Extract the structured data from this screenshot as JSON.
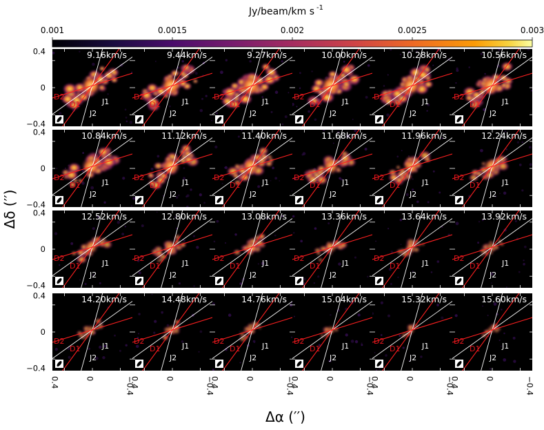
{
  "colorbar": {
    "unit_label": "Jy/beam/km s",
    "unit_exponent": "-1",
    "ticks": [
      "0.001",
      "0.0015",
      "0.002",
      "0.0025",
      "0.003"
    ],
    "range": [
      0.001,
      0.003
    ],
    "colormap": "inferno"
  },
  "axes": {
    "ylabel": "Δδ (′′)",
    "xlabel": "Δα (′′)",
    "ytick_labels": [
      "0.4",
      "0",
      "−0.4"
    ],
    "xtick_labels": [
      "0.4",
      "0",
      "−0.4"
    ],
    "range": [
      -0.4,
      0.4
    ]
  },
  "line_labels": {
    "white": [
      "J1",
      "J2"
    ],
    "red": [
      "D1",
      "D2"
    ]
  },
  "colors": {
    "background": "#000000",
    "jet_lines": "#ffffff",
    "disk_lines": "#ff2020",
    "label_red": "#e8141c"
  },
  "chart_data": {
    "type": "heatmap",
    "channels": [
      {
        "v": "9.16km/s",
        "i": 1.0
      },
      {
        "v": "9.44km/s",
        "i": 1.0
      },
      {
        "v": "9.27km/s",
        "i": 1.0
      },
      {
        "v": "10.00km/s",
        "i": 1.0
      },
      {
        "v": "10.28km/s",
        "i": 0.97
      },
      {
        "v": "10.56km/s",
        "i": 0.93
      },
      {
        "v": "10.84km/s",
        "i": 0.9
      },
      {
        "v": "11.12km/s",
        "i": 0.85
      },
      {
        "v": "11.40km/s",
        "i": 0.8
      },
      {
        "v": "11.68km/s",
        "i": 0.74
      },
      {
        "v": "11.96km/s",
        "i": 0.68
      },
      {
        "v": "12.24km/s",
        "i": 0.62
      },
      {
        "v": "12.52km/s",
        "i": 0.55
      },
      {
        "v": "12.80km/s",
        "i": 0.5
      },
      {
        "v": "13.08km/s",
        "i": 0.46
      },
      {
        "v": "13.36km/s",
        "i": 0.4
      },
      {
        "v": "13.64km/s",
        "i": 0.34
      },
      {
        "v": "13.92km/s",
        "i": 0.3
      },
      {
        "v": "14.20km/s",
        "i": 0.26
      },
      {
        "v": "14.48km/s",
        "i": 0.23
      },
      {
        "v": "14.76km/s",
        "i": 0.2
      },
      {
        "v": "15.04km/s",
        "i": 0.16
      },
      {
        "v": "15.32km/s",
        "i": 0.12
      },
      {
        "v": "15.60km/s",
        "i": 0.1
      }
    ]
  }
}
